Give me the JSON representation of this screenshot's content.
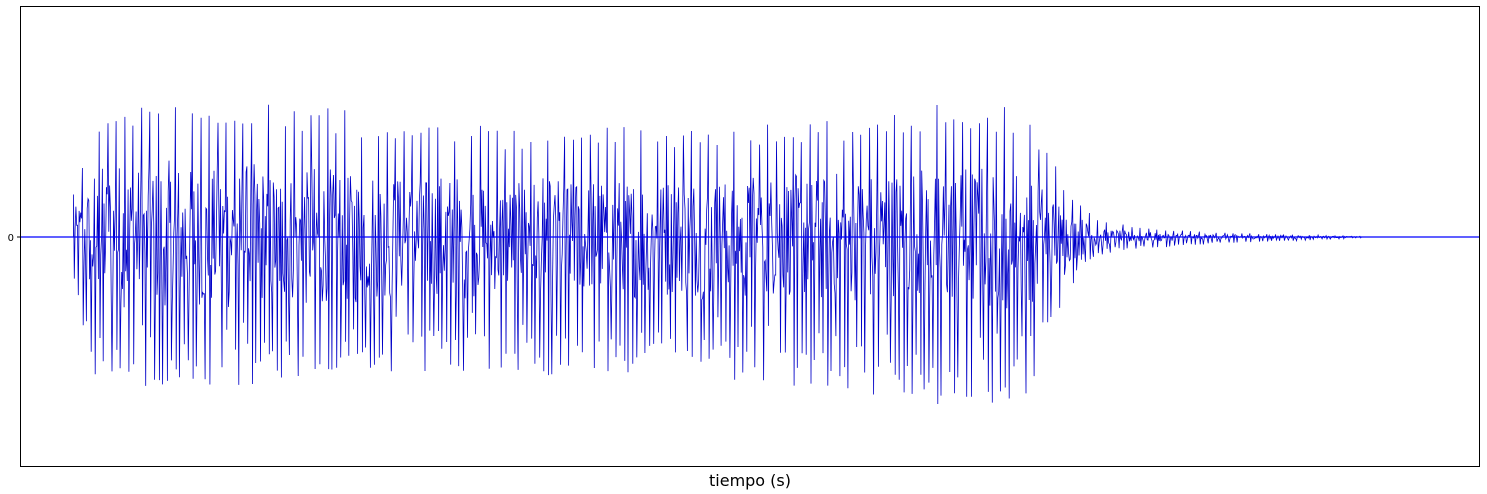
{
  "chart_data": {
    "type": "line",
    "title": "",
    "xlabel": "tiempo (s)",
    "ylabel": "",
    "y_ticks": [
      0
    ],
    "x_ticks": [],
    "ylim": [
      -1,
      1
    ],
    "xlim": [
      0,
      1
    ],
    "grid": false,
    "series": [
      {
        "color": "#0000c8",
        "baseline_color": "#0000ff",
        "signal_start": 0.036,
        "sustain_end": 0.7,
        "decay_end": 0.92,
        "envelope_x": [
          0.036,
          0.05,
          0.07,
          0.12,
          0.2,
          0.26,
          0.34,
          0.41,
          0.47,
          0.53,
          0.57,
          0.6,
          0.63,
          0.66,
          0.69,
          0.7,
          0.72,
          0.74,
          0.77,
          0.82,
          0.88,
          0.92,
          1.0
        ],
        "envelope_upper": [
          0.2,
          0.55,
          0.62,
          0.6,
          0.57,
          0.52,
          0.47,
          0.48,
          0.5,
          0.52,
          0.53,
          0.55,
          0.58,
          0.58,
          0.57,
          0.42,
          0.2,
          0.07,
          0.04,
          0.02,
          0.01,
          0.003,
          0.003
        ],
        "envelope_lower": [
          -0.25,
          -0.62,
          -0.7,
          -0.67,
          -0.64,
          -0.6,
          -0.6,
          -0.62,
          -0.62,
          -0.65,
          -0.68,
          -0.72,
          -0.75,
          -0.74,
          -0.7,
          -0.5,
          -0.22,
          -0.08,
          -0.05,
          -0.03,
          -0.015,
          -0.004,
          -0.004
        ],
        "period": 0.0058
      }
    ]
  }
}
